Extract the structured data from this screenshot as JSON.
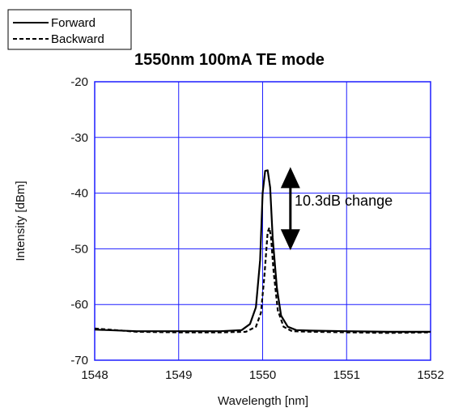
{
  "chart_data": {
    "type": "line",
    "title": "1550nm 100mA TE mode",
    "xlabel": "Wavelength [nm]",
    "ylabel": "Intensity [dBm]",
    "xlim": [
      1548,
      1552
    ],
    "ylim": [
      -70,
      -20
    ],
    "x_ticks": [
      "1548",
      "1549",
      "1550",
      "1551",
      "1552"
    ],
    "y_ticks": [
      "-20",
      "-30",
      "-40",
      "-50",
      "-60",
      "-70"
    ],
    "grid": true,
    "legend_position": "top-left",
    "series": [
      {
        "name": "Forward",
        "style": "solid",
        "color": "#000000",
        "points": [
          [
            1548.0,
            -64.5
          ],
          [
            1548.5,
            -64.8
          ],
          [
            1549.0,
            -64.8
          ],
          [
            1549.5,
            -64.8
          ],
          [
            1549.75,
            -64.6
          ],
          [
            1549.85,
            -63.5
          ],
          [
            1549.92,
            -60.5
          ],
          [
            1549.97,
            -52.0
          ],
          [
            1550.0,
            -40.0
          ],
          [
            1550.03,
            -36.0
          ],
          [
            1550.06,
            -35.9
          ],
          [
            1550.09,
            -39.0
          ],
          [
            1550.12,
            -48.0
          ],
          [
            1550.17,
            -57.0
          ],
          [
            1550.22,
            -62.0
          ],
          [
            1550.3,
            -64.0
          ],
          [
            1550.4,
            -64.6
          ],
          [
            1550.6,
            -64.7
          ],
          [
            1551.0,
            -64.8
          ],
          [
            1551.5,
            -64.9
          ],
          [
            1552.0,
            -64.9
          ]
        ]
      },
      {
        "name": "Backward",
        "style": "dashed",
        "color": "#000000",
        "points": [
          [
            1548.0,
            -64.3
          ],
          [
            1548.5,
            -64.9
          ],
          [
            1549.0,
            -65.0
          ],
          [
            1549.5,
            -65.0
          ],
          [
            1549.8,
            -64.9
          ],
          [
            1549.92,
            -64.0
          ],
          [
            1549.98,
            -61.5
          ],
          [
            1550.02,
            -55.0
          ],
          [
            1550.06,
            -47.0
          ],
          [
            1550.08,
            -46.2
          ],
          [
            1550.1,
            -48.0
          ],
          [
            1550.13,
            -54.0
          ],
          [
            1550.18,
            -61.0
          ],
          [
            1550.25,
            -64.0
          ],
          [
            1550.35,
            -64.8
          ],
          [
            1550.6,
            -64.9
          ],
          [
            1551.0,
            -65.0
          ],
          [
            1551.5,
            -65.1
          ],
          [
            1552.0,
            -65.0
          ]
        ]
      }
    ],
    "annotations": [
      {
        "text": "10.3dB change",
        "y_from": -35.9,
        "y_to": -46.2,
        "x": 1550.35
      }
    ]
  }
}
